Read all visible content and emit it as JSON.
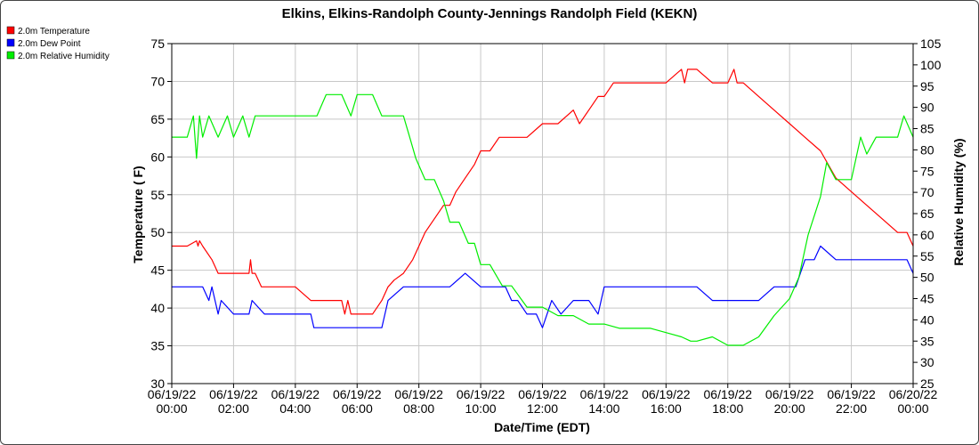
{
  "chart_data": {
    "type": "line",
    "title": "Elkins, Elkins-Randolph County-Jennings Randolph Field (KEKN)",
    "xlabel": "Date/Time (EDT)",
    "ylabel_left": "Temperature ( F)",
    "ylabel_right": "Relative Humidity (%)",
    "ylim_left": [
      30,
      75
    ],
    "ylim_right": [
      25,
      105
    ],
    "yticks_left": [
      30,
      35,
      40,
      45,
      50,
      55,
      60,
      65,
      70,
      75
    ],
    "yticks_right": [
      25,
      30,
      35,
      40,
      45,
      50,
      55,
      60,
      65,
      70,
      75,
      80,
      85,
      90,
      95,
      100,
      105
    ],
    "xticks": [
      {
        "hour": 0,
        "date": "06/19/22",
        "time": "00:00"
      },
      {
        "hour": 2,
        "date": "06/19/22",
        "time": "02:00"
      },
      {
        "hour": 4,
        "date": "06/19/22",
        "time": "04:00"
      },
      {
        "hour": 6,
        "date": "06/19/22",
        "time": "06:00"
      },
      {
        "hour": 8,
        "date": "06/19/22",
        "time": "08:00"
      },
      {
        "hour": 10,
        "date": "06/19/22",
        "time": "10:00"
      },
      {
        "hour": 12,
        "date": "06/19/22",
        "time": "12:00"
      },
      {
        "hour": 14,
        "date": "06/19/22",
        "time": "14:00"
      },
      {
        "hour": 16,
        "date": "06/19/22",
        "time": "16:00"
      },
      {
        "hour": 18,
        "date": "06/19/22",
        "time": "18:00"
      },
      {
        "hour": 20,
        "date": "06/19/22",
        "time": "20:00"
      },
      {
        "hour": 22,
        "date": "06/19/22",
        "time": "22:00"
      },
      {
        "hour": 24,
        "date": "06/20/22",
        "time": "00:00"
      }
    ],
    "grid": true,
    "legend_position": "top-left",
    "series": [
      {
        "name": "2.0m Temperature",
        "color": "#ff0000",
        "axis": "left",
        "x": [
          0,
          0.5,
          0.8,
          0.85,
          0.9,
          1.0,
          1.3,
          1.4,
          1.5,
          1.7,
          2.0,
          2.5,
          2.55,
          2.6,
          2.7,
          2.9,
          3.0,
          3.5,
          4.0,
          4.5,
          5.0,
          5.5,
          5.6,
          5.7,
          5.8,
          6.0,
          6.5,
          6.8,
          7.0,
          7.2,
          7.5,
          7.8,
          8.0,
          8.2,
          8.5,
          8.8,
          9.0,
          9.2,
          9.5,
          9.8,
          10.0,
          10.3,
          10.6,
          11.0,
          11.5,
          12.0,
          12.5,
          13.0,
          13.2,
          13.5,
          13.8,
          14.0,
          14.3,
          14.7,
          15.0,
          15.5,
          16.0,
          16.5,
          16.6,
          16.7,
          17.0,
          17.5,
          18.0,
          18.2,
          18.3,
          18.5,
          19.0,
          19.5,
          20.0,
          20.5,
          21.0,
          21.5,
          22.0,
          22.5,
          23.0,
          23.5,
          23.8,
          24.0
        ],
        "values": [
          48.2,
          48.2,
          48.9,
          48.2,
          48.9,
          48.2,
          46.4,
          45.5,
          44.6,
          44.6,
          44.6,
          44.6,
          46.4,
          44.6,
          44.6,
          42.8,
          42.8,
          42.8,
          42.8,
          41.0,
          41.0,
          41.0,
          39.2,
          41.0,
          39.2,
          39.2,
          39.2,
          41.0,
          42.8,
          43.7,
          44.6,
          46.4,
          48.2,
          50.0,
          51.8,
          53.6,
          53.6,
          55.4,
          57.2,
          59.0,
          60.8,
          60.8,
          62.6,
          62.6,
          62.6,
          64.4,
          64.4,
          66.2,
          64.4,
          66.2,
          68.0,
          68.0,
          69.8,
          69.8,
          69.8,
          69.8,
          69.8,
          71.6,
          69.8,
          71.6,
          71.6,
          69.8,
          69.8,
          71.6,
          69.8,
          69.8,
          68.0,
          66.2,
          64.4,
          62.6,
          60.8,
          57.2,
          55.4,
          53.6,
          51.8,
          50.0,
          50.0,
          48.2
        ]
      },
      {
        "name": "2.0m Dew Point",
        "color": "#0000ff",
        "axis": "left",
        "x": [
          0,
          0.5,
          1.0,
          1.2,
          1.3,
          1.5,
          1.6,
          2.0,
          2.5,
          2.6,
          3.0,
          3.5,
          4.0,
          4.5,
          4.6,
          4.8,
          5.0,
          5.5,
          6.0,
          6.5,
          6.8,
          7.0,
          7.5,
          8.0,
          8.5,
          9.0,
          9.5,
          10.0,
          10.5,
          10.8,
          11.0,
          11.2,
          11.5,
          11.8,
          12.0,
          12.3,
          12.6,
          13.0,
          13.5,
          13.8,
          14.0,
          14.5,
          15.0,
          15.5,
          16.0,
          16.5,
          16.8,
          17.0,
          17.5,
          18.0,
          18.5,
          19.0,
          19.5,
          20.0,
          20.2,
          20.5,
          20.8,
          21.0,
          21.5,
          22.0,
          22.5,
          23.0,
          23.5,
          23.8,
          24.0
        ],
        "values": [
          42.8,
          42.8,
          42.8,
          41.0,
          42.8,
          39.2,
          41.0,
          39.2,
          39.2,
          41.0,
          39.2,
          39.2,
          39.2,
          39.2,
          37.4,
          37.4,
          37.4,
          37.4,
          37.4,
          37.4,
          37.4,
          41.0,
          42.8,
          42.8,
          42.8,
          42.8,
          44.6,
          42.8,
          42.8,
          42.8,
          41.0,
          41.0,
          39.2,
          39.2,
          37.4,
          41.0,
          39.2,
          41.0,
          41.0,
          39.2,
          42.8,
          42.8,
          42.8,
          42.8,
          42.8,
          42.8,
          42.8,
          42.8,
          41.0,
          41.0,
          41.0,
          41.0,
          42.8,
          42.8,
          42.8,
          46.4,
          46.4,
          48.2,
          46.4,
          46.4,
          46.4,
          46.4,
          46.4,
          46.4,
          44.6
        ]
      },
      {
        "name": "2.0m Relative Humidity",
        "color": "#00ee00",
        "axis": "right",
        "x": [
          0,
          0.5,
          0.7,
          0.8,
          0.9,
          1.0,
          1.2,
          1.5,
          1.8,
          2.0,
          2.3,
          2.5,
          2.7,
          3.0,
          3.5,
          4.0,
          4.5,
          4.7,
          5.0,
          5.5,
          5.8,
          6.0,
          6.5,
          6.8,
          7.0,
          7.5,
          7.7,
          7.9,
          8.2,
          8.5,
          8.8,
          9.0,
          9.3,
          9.6,
          9.8,
          10.0,
          10.3,
          10.7,
          11.0,
          11.5,
          12.0,
          12.5,
          13.0,
          13.5,
          14.0,
          14.5,
          15.0,
          15.5,
          16.0,
          16.5,
          16.8,
          17.0,
          17.5,
          18.0,
          18.5,
          19.0,
          19.5,
          20.0,
          20.3,
          20.6,
          21.0,
          21.2,
          21.5,
          22.0,
          22.3,
          22.5,
          22.8,
          23.0,
          23.5,
          23.7,
          24.0
        ],
        "values": [
          83,
          83,
          88,
          78,
          88,
          83,
          88,
          83,
          88,
          83,
          88,
          83,
          88,
          88,
          88,
          88,
          88,
          88,
          93,
          93,
          88,
          93,
          93,
          88,
          88,
          88,
          83,
          78,
          73,
          73,
          68,
          63,
          63,
          58,
          58,
          53,
          53,
          48,
          48,
          43,
          43,
          41,
          41,
          39,
          39,
          38,
          38,
          38,
          37,
          36,
          35,
          35,
          36,
          34,
          34,
          36,
          41,
          45,
          50,
          60,
          69,
          77,
          73,
          73,
          83,
          79,
          83,
          83,
          83,
          88,
          83
        ]
      }
    ]
  }
}
